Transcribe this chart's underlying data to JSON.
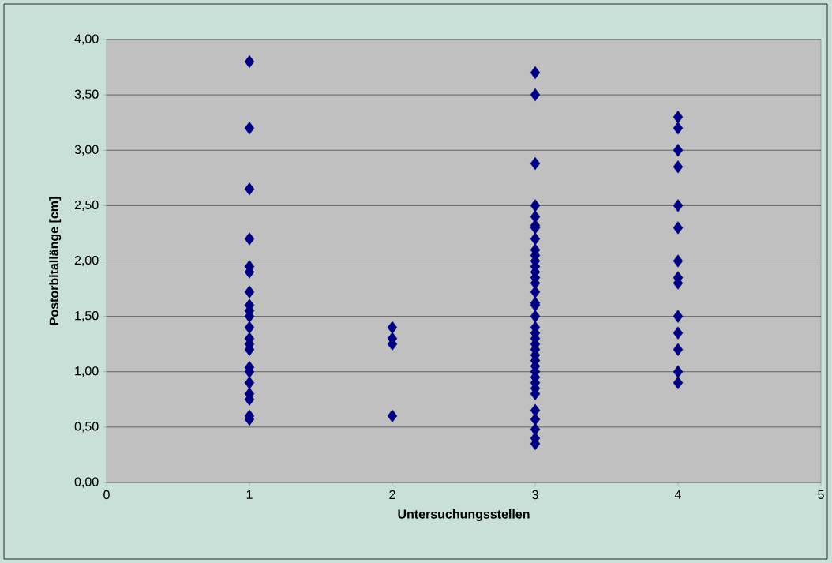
{
  "chart_data": {
    "type": "scatter",
    "xlabel": "Untersuchungsstellen",
    "ylabel": "Postorbitallänge [cm]",
    "series": [
      {
        "color": "#000080",
        "x": [
          1,
          1,
          1,
          1,
          1,
          1,
          1,
          1,
          1,
          1,
          1,
          1,
          1,
          1,
          1,
          1,
          1,
          1,
          1,
          1,
          1,
          2,
          2,
          2,
          2,
          3,
          3,
          3,
          3,
          3,
          3,
          3,
          3,
          3,
          3,
          3,
          3,
          3,
          3,
          3,
          3,
          3,
          3,
          3,
          3,
          3,
          3,
          3,
          3,
          3,
          3,
          3,
          3,
          3,
          3,
          3,
          3,
          3,
          3,
          3,
          3,
          3,
          4,
          4,
          4,
          4,
          4,
          4,
          4,
          4,
          4,
          4,
          4,
          4,
          4,
          4
        ],
        "values": [
          3.8,
          3.2,
          2.65,
          2.2,
          1.95,
          1.9,
          1.72,
          1.6,
          1.55,
          1.5,
          1.4,
          1.3,
          1.25,
          1.2,
          1.04,
          1.0,
          0.9,
          0.8,
          0.75,
          0.6,
          0.57,
          1.4,
          1.3,
          1.25,
          0.6,
          3.7,
          3.5,
          2.88,
          2.5,
          2.4,
          2.32,
          2.3,
          2.2,
          2.1,
          2.05,
          2.0,
          1.95,
          1.9,
          1.85,
          1.8,
          1.72,
          1.62,
          1.6,
          1.5,
          1.4,
          1.35,
          1.3,
          1.25,
          1.2,
          1.15,
          1.1,
          1.05,
          1.0,
          0.95,
          0.9,
          0.85,
          0.8,
          0.65,
          0.57,
          0.48,
          0.4,
          0.35,
          3.3,
          3.2,
          3.0,
          2.85,
          2.5,
          2.3,
          2.0,
          1.85,
          1.8,
          1.5,
          1.35,
          1.2,
          1.0,
          0.9
        ]
      }
    ],
    "marker": "diamond",
    "grid": "y",
    "xlim": [
      0,
      5
    ],
    "xticks": [
      0,
      1,
      2,
      3,
      4,
      5
    ],
    "ylim": [
      0,
      4
    ],
    "yticks": [
      {
        "value": 0,
        "label": "0,00"
      },
      {
        "value": 0.5,
        "label": "0,50"
      },
      {
        "value": 1,
        "label": "1,00"
      },
      {
        "value": 1.5,
        "label": "1,50"
      },
      {
        "value": 2,
        "label": "2,00"
      },
      {
        "value": 2.5,
        "label": "2,50"
      },
      {
        "value": 3,
        "label": "3,00"
      },
      {
        "value": 3.5,
        "label": "3,50"
      },
      {
        "value": 4,
        "label": "4,00"
      }
    ]
  }
}
